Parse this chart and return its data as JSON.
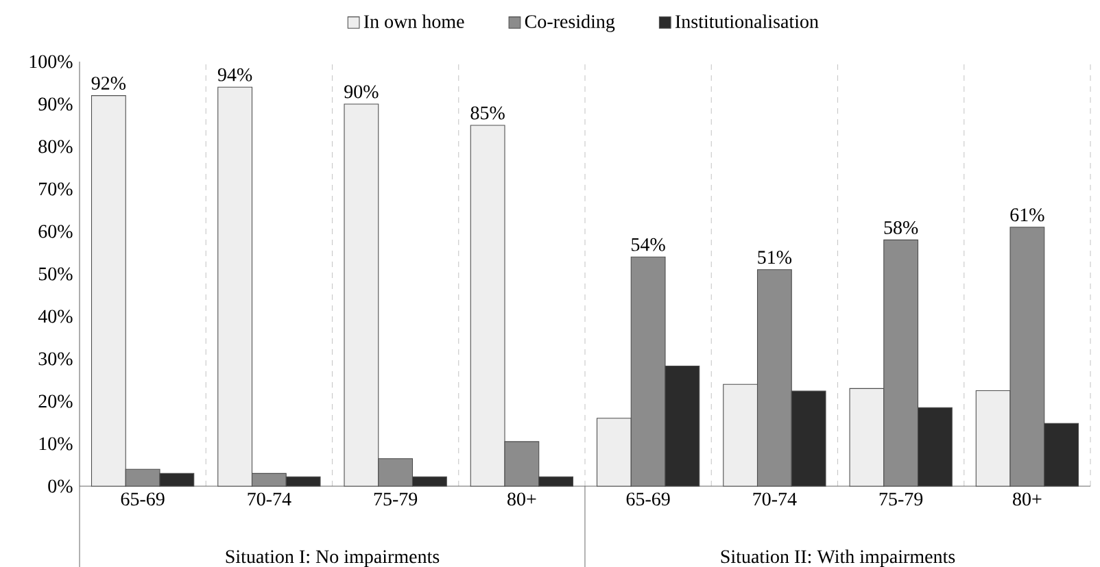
{
  "chart_data": {
    "type": "bar",
    "categories": [
      "65-69",
      "70-74",
      "75-79",
      "80+",
      "65-69",
      "70-74",
      "75-79",
      "80+"
    ],
    "series": [
      {
        "name": "In own home",
        "color": "#eeeeee",
        "values": [
          92,
          94,
          90,
          85,
          16,
          24,
          23,
          22.5
        ],
        "value_labels": [
          "92%",
          "94%",
          "90%",
          "85%",
          null,
          null,
          null,
          null
        ]
      },
      {
        "name": "Co-residing",
        "color": "#8c8c8c",
        "values": [
          4,
          3,
          6.5,
          10.5,
          54,
          51,
          58,
          61
        ],
        "value_labels": [
          null,
          null,
          null,
          null,
          "54%",
          "51%",
          "58%",
          "61%"
        ]
      },
      {
        "name": "Institutionalisation",
        "color": "#2b2b2b",
        "values": [
          3,
          2.2,
          2.2,
          2.2,
          28.3,
          22.4,
          18.5,
          14.8
        ]
      }
    ],
    "ylim": [
      0,
      100
    ],
    "yticks": [
      {
        "value": 0,
        "label": "0%"
      },
      {
        "value": 10,
        "label": "10%"
      },
      {
        "value": 20,
        "label": "20%"
      },
      {
        "value": 30,
        "label": "30%"
      },
      {
        "value": 40,
        "label": "40%"
      },
      {
        "value": 50,
        "label": "50%"
      },
      {
        "value": 60,
        "label": "60%"
      },
      {
        "value": 70,
        "label": "70%"
      },
      {
        "value": 80,
        "label": "80%"
      },
      {
        "value": 90,
        "label": "90%"
      },
      {
        "value": 100,
        "label": "100%"
      }
    ],
    "grid": "x",
    "legend": "top",
    "annotations": [
      "Situation I: No impairments",
      "Situation II: With impairments"
    ]
  }
}
